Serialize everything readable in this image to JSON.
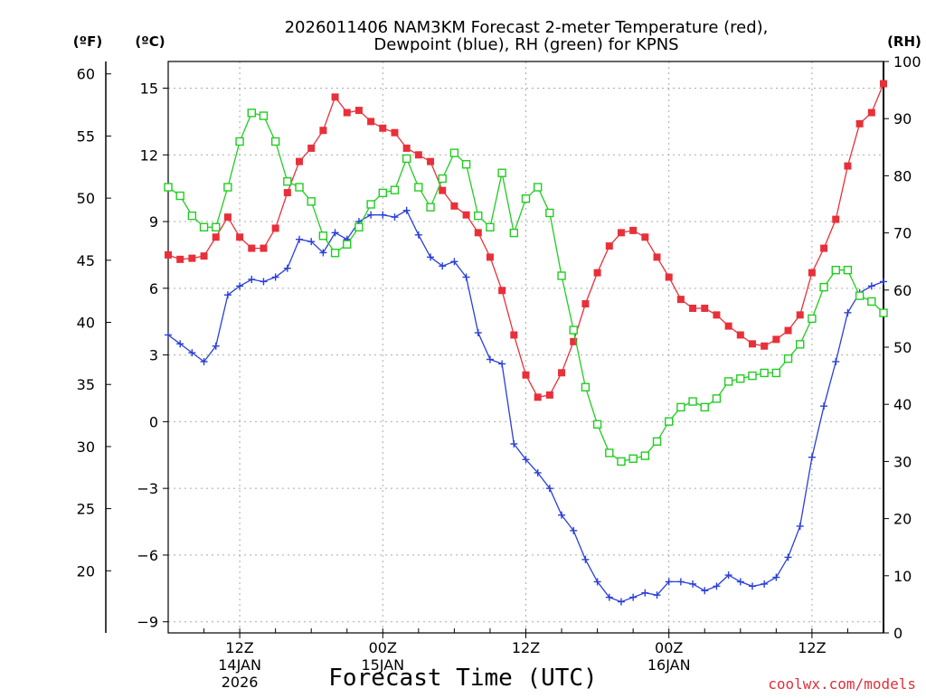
{
  "chart_data": {
    "type": "line",
    "title_line1": "2026011406 NAM3KM Forecast 2-meter Temperature (red),",
    "title_line2": "Dewpoint (blue), RH (green) for KPNS",
    "xlabel": "Forecast Time (UTC)",
    "unit_f": "(ºF)",
    "unit_c": "(ºC)",
    "unit_rh": "(RH)",
    "watermark": "coolwx.com/models",
    "left_c_axis": {
      "ylim": [
        -9.5,
        16.2
      ],
      "ticks": [
        "-9",
        "-6",
        "-3",
        "0",
        "3",
        "6",
        "9",
        "12",
        "15"
      ]
    },
    "far_left_f_axis": {
      "ylim": [
        15.0,
        61.0
      ],
      "ticks": [
        "20",
        "25",
        "30",
        "35",
        "40",
        "45",
        "50",
        "55",
        "60"
      ]
    },
    "right_rh_axis": {
      "ylim": [
        0,
        100
      ],
      "ticks": [
        "0",
        "10",
        "20",
        "30",
        "40",
        "50",
        "60",
        "70",
        "80",
        "90",
        "100"
      ]
    },
    "x_ticks": [
      {
        "hour": 6,
        "label": "12Z",
        "sub1": "14JAN",
        "sub2": "2026"
      },
      {
        "hour": 18,
        "label": "00Z",
        "sub1": "15JAN",
        "sub2": ""
      },
      {
        "hour": 30,
        "label": "12Z",
        "sub1": "",
        "sub2": ""
      },
      {
        "hour": 42,
        "label": "00Z",
        "sub1": "16JAN",
        "sub2": ""
      },
      {
        "hour": 54,
        "label": "12Z",
        "sub1": "",
        "sub2": ""
      }
    ],
    "x_range_hours": [
      0,
      60
    ],
    "series": [
      {
        "name": "Temperature",
        "unit": "°C",
        "color": "#e8303a",
        "marker": "filled-square",
        "values": [
          7.5,
          7.3,
          7.35,
          7.45,
          8.3,
          9.2,
          8.3,
          7.8,
          7.8,
          8.7,
          10.3,
          11.7,
          12.3,
          13.1,
          14.6,
          13.9,
          14.0,
          13.5,
          13.2,
          13.0,
          12.3,
          12.0,
          11.7,
          10.4,
          9.7,
          9.3,
          8.5,
          7.4,
          5.9,
          3.9,
          2.1,
          1.1,
          1.2,
          2.2,
          3.6,
          5.3,
          6.7,
          7.9,
          8.5,
          8.6,
          8.3,
          7.4,
          6.5,
          5.5,
          5.1,
          5.1,
          4.8,
          4.3,
          3.9,
          3.5,
          3.4,
          3.7,
          4.1,
          4.8,
          6.7,
          7.8,
          9.1,
          11.5,
          13.4,
          13.9,
          15.2
        ]
      },
      {
        "name": "Dewpoint",
        "unit": "°C",
        "color": "#2a3fd8",
        "marker": "plus",
        "values": [
          3.9,
          3.5,
          3.1,
          2.7,
          3.4,
          5.7,
          6.1,
          6.4,
          6.3,
          6.5,
          6.9,
          8.2,
          8.1,
          7.6,
          8.5,
          8.2,
          9.0,
          9.3,
          9.3,
          9.2,
          9.5,
          8.4,
          7.4,
          7.0,
          7.2,
          6.5,
          4.0,
          2.8,
          2.6,
          -1.0,
          -1.7,
          -2.3,
          -3.0,
          -4.2,
          -4.9,
          -6.2,
          -7.2,
          -7.9,
          -8.1,
          -7.9,
          -7.7,
          -7.8,
          -7.2,
          -7.2,
          -7.3,
          -7.6,
          -7.4,
          -6.9,
          -7.2,
          -7.4,
          -7.3,
          -7.0,
          -6.1,
          -4.7,
          -1.6,
          0.7,
          2.7,
          4.9,
          5.8,
          6.1,
          6.3
        ]
      },
      {
        "name": "RH",
        "unit": "%",
        "color": "#22cc22",
        "marker": "open-square",
        "values": [
          78,
          76.5,
          73,
          71,
          71,
          78,
          86,
          91,
          90.5,
          86,
          79,
          78,
          75.5,
          69.5,
          66.5,
          68,
          71,
          75,
          77,
          77.5,
          83,
          78,
          74.5,
          79.5,
          84,
          82,
          73,
          71,
          80.5,
          70,
          76,
          78,
          73.5,
          62.5,
          53,
          43,
          36.5,
          31.5,
          30,
          30.5,
          31,
          33.5,
          37,
          39.5,
          40.5,
          39.5,
          41,
          44,
          44.5,
          45,
          45.5,
          45.5,
          48,
          50.5,
          55,
          60.5,
          63.5,
          63.5,
          59,
          58,
          56
        ]
      }
    ]
  }
}
